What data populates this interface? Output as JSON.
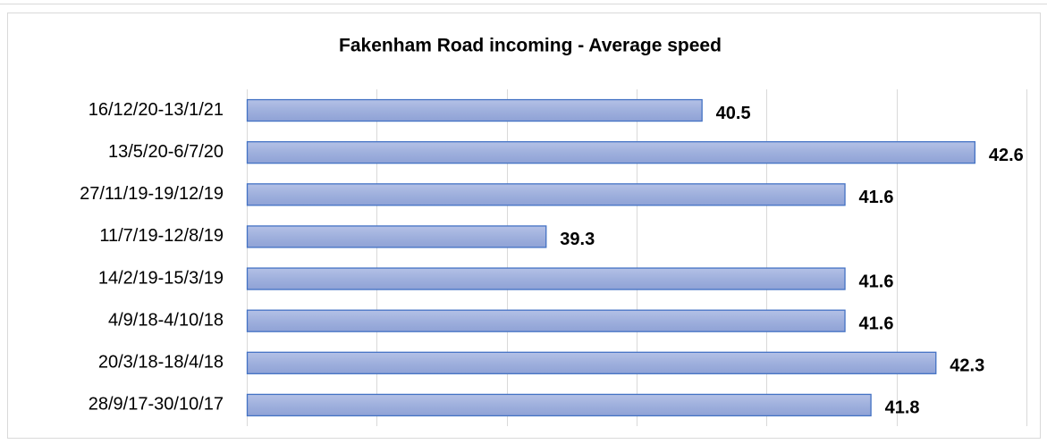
{
  "chart_data": {
    "type": "bar",
    "orientation": "horizontal",
    "title": "Fakenham Road incoming - Average speed",
    "categories": [
      "16/12/20-13/1/21",
      "13/5/20-6/7/20",
      "27/11/19-19/12/19",
      "11/7/19-12/8/19",
      "14/2/19-15/3/19",
      "4/9/18-4/10/18",
      "20/3/18-18/4/18",
      "28/9/17-30/10/17"
    ],
    "values": [
      40.5,
      42.6,
      41.6,
      39.3,
      41.6,
      41.6,
      42.3,
      41.8
    ],
    "color": "#9fb0dd",
    "edge_color": "#4472c4",
    "xlim": [
      37,
      43
    ],
    "xticks": [
      37,
      38,
      39,
      40,
      41,
      42,
      43
    ],
    "grid": true
  }
}
